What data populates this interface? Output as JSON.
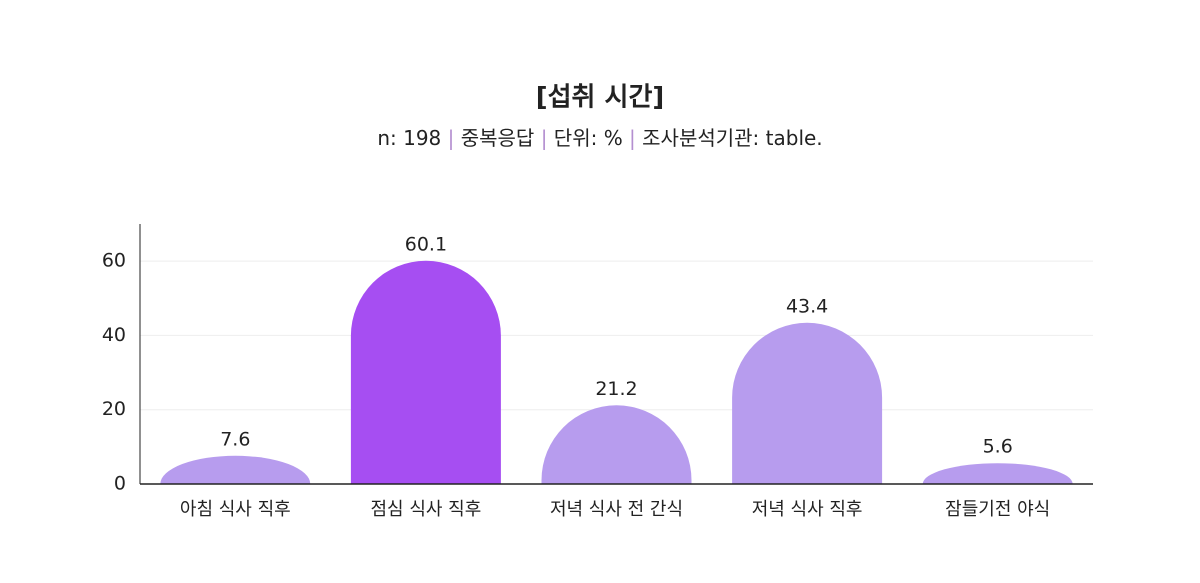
{
  "chart_data": {
    "type": "bar",
    "title": "[섭취 시간]",
    "subtitle": [
      "n: 198",
      "중복응답",
      "단위: %",
      "조사분석기관: table."
    ],
    "categories": [
      "아침 식사 직후",
      "점심 식사 직후",
      "저녁 식사 전 간식",
      "저녁 식사 직후",
      "잠들기전 야식"
    ],
    "values": [
      7.6,
      60.1,
      21.2,
      43.4,
      5.6
    ],
    "colors": [
      "#b79cee",
      "#a64ef2",
      "#b79cee",
      "#b79cee",
      "#b79cee"
    ],
    "ylim": [
      0,
      70
    ],
    "yticks": [
      0,
      20,
      40,
      60
    ],
    "grid": true
  }
}
